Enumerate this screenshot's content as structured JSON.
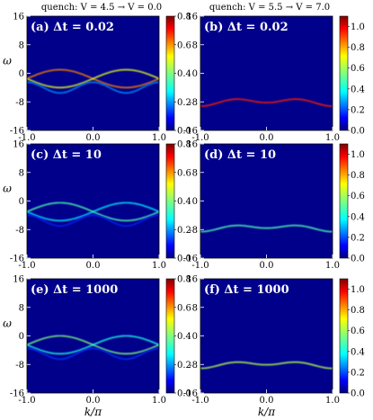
{
  "chart_data": {
    "type": "heatmap",
    "column_titles": [
      "quench: V = 4.5 → V = 0.0",
      "quench: V = 5.5 → V = 7.0"
    ],
    "xlabel": "k/π",
    "ylabel": "ω",
    "xlim": [
      -1.0,
      1.0
    ],
    "ylim": [
      -16,
      16
    ],
    "x_ticks": [
      "-1.0",
      "0.0",
      "1.0"
    ],
    "y_ticks": [
      "16",
      "8",
      "0",
      "-8",
      "-16"
    ],
    "colormap": "jet",
    "panels": [
      {
        "label": "(a)",
        "dt_text": "Δt = 0.02",
        "column": 0,
        "row": 0,
        "colorbar_max": 0.8,
        "colorbar_ticks": [
          "0.8",
          "0.6",
          "0.4",
          "0.2",
          "0.0"
        ],
        "features": {
          "type": "crossing",
          "center": -1.5,
          "amplitude": 2.5,
          "peak_intensity": 0.75
        }
      },
      {
        "label": "(b)",
        "dt_text": "Δt = 0.02",
        "column": 1,
        "row": 0,
        "colorbar_max": 1.1,
        "colorbar_ticks": [
          "1.0",
          "0.8",
          "0.6",
          "0.4",
          "0.2",
          "0.0"
        ],
        "features": {
          "type": "band",
          "center": -8.0,
          "amplitude": 1.2,
          "peak_intensity": 0.85
        }
      },
      {
        "label": "(c)",
        "dt_text": "Δt = 10",
        "column": 0,
        "row": 1,
        "colorbar_max": 0.8,
        "colorbar_ticks": [
          "0.8",
          "0.6",
          "0.4",
          "0.2",
          "0.0"
        ],
        "features": {
          "type": "crossing",
          "center": -3.0,
          "amplitude": 2.5,
          "peak_intensity": 0.45
        }
      },
      {
        "label": "(d)",
        "dt_text": "Δt = 10",
        "column": 1,
        "row": 1,
        "colorbar_max": 1.1,
        "colorbar_ticks": [
          "1.0",
          "0.8",
          "0.6",
          "0.4",
          "0.2",
          "0.0"
        ],
        "features": {
          "type": "band",
          "center": -7.5,
          "amplitude": 1.0,
          "peak_intensity": 0.45
        }
      },
      {
        "label": "(e)",
        "dt_text": "Δt = 1000",
        "column": 0,
        "row": 2,
        "colorbar_max": 0.8,
        "colorbar_ticks": [
          "0.8",
          "0.6",
          "0.4",
          "0.2",
          "0.0"
        ],
        "features": {
          "type": "crossing",
          "center": -2.5,
          "amplitude": 2.5,
          "peak_intensity": 0.5
        }
      },
      {
        "label": "(f)",
        "dt_text": "Δt = 1000",
        "column": 1,
        "row": 2,
        "colorbar_max": 1.1,
        "colorbar_ticks": [
          "1.0",
          "0.8",
          "0.6",
          "0.4",
          "0.2",
          "0.0"
        ],
        "features": {
          "type": "band",
          "center": -8.0,
          "amplitude": 1.0,
          "peak_intensity": 0.55
        }
      }
    ]
  }
}
